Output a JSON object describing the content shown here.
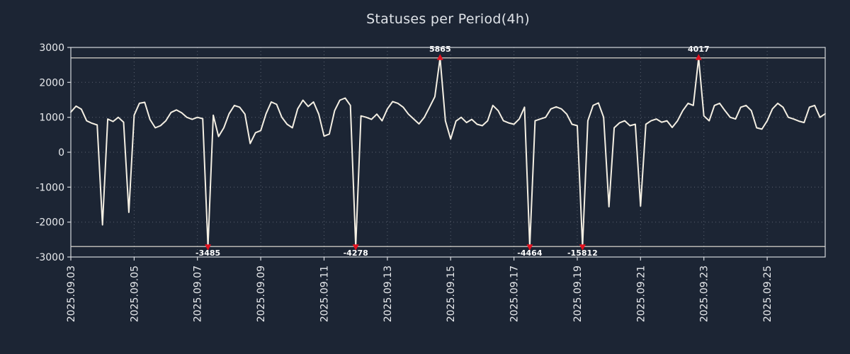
{
  "colors": {
    "background": "#1c2534",
    "line": "#f4efe3",
    "grid": "#9aa0ab",
    "frame": "#d4d7dc",
    "marker": "#e3111f",
    "text": "#e9ebee",
    "clip_line": "#ece8dc"
  },
  "chart_data": {
    "type": "line",
    "title": "Statuses per Period(4h)",
    "xlabel": "",
    "ylabel": "",
    "ylim": [
      -3000,
      3000
    ],
    "y_ticks": [
      -3000,
      -2000,
      -1000,
      0,
      1000,
      2000,
      3000
    ],
    "x_ticks": [
      {
        "day": 0,
        "label": "2025.09.03"
      },
      {
        "day": 2,
        "label": "2025.09.05"
      },
      {
        "day": 4,
        "label": "2025.09.07"
      },
      {
        "day": 6,
        "label": "2025.09.09"
      },
      {
        "day": 8,
        "label": "2025.09.11"
      },
      {
        "day": 10,
        "label": "2025.09.13"
      },
      {
        "day": 12,
        "label": "2025.09.15"
      },
      {
        "day": 14,
        "label": "2025.09.17"
      },
      {
        "day": 16,
        "label": "2025.09.19"
      },
      {
        "day": 18,
        "label": "2025.09.21"
      },
      {
        "day": 20,
        "label": "2025.09.23"
      },
      {
        "day": 22,
        "label": "2025.09.25"
      }
    ],
    "x_step_days": 0.1666667,
    "clip_level": 2700,
    "grid": true,
    "legend": "none",
    "outliers": [
      {
        "value": -3485,
        "approx_date": "2025.09.07"
      },
      {
        "value": -4278,
        "approx_date": "2025.09.12"
      },
      {
        "value": 5865,
        "approx_date": "2025.09.14"
      },
      {
        "value": -4464,
        "approx_date": "2025.09.17"
      },
      {
        "value": -15812,
        "approx_date": "2025.09.19"
      },
      {
        "value": 4017,
        "approx_date": "2025.09.22"
      }
    ],
    "values": [
      1150,
      1320,
      1230,
      900,
      830,
      780,
      -2080,
      950,
      880,
      1000,
      860,
      -1720,
      1060,
      1400,
      1430,
      940,
      700,
      760,
      900,
      1140,
      1210,
      1130,
      1000,
      940,
      1000,
      960,
      -3485,
      1060,
      450,
      700,
      1100,
      1340,
      1290,
      1090,
      250,
      560,
      620,
      1100,
      1440,
      1370,
      1000,
      800,
      700,
      1240,
      1490,
      1310,
      1440,
      1090,
      460,
      520,
      1190,
      1490,
      1550,
      1340,
      -4278,
      1040,
      1000,
      940,
      1090,
      900,
      1240,
      1450,
      1400,
      1290,
      1090,
      950,
      810,
      1000,
      1290,
      1590,
      5865,
      900,
      380,
      890,
      1000,
      850,
      940,
      800,
      760,
      900,
      1340,
      1190,
      900,
      840,
      800,
      950,
      1290,
      -4464,
      900,
      950,
      1000,
      1240,
      1300,
      1240,
      1090,
      800,
      760,
      -15812,
      900,
      1340,
      1410,
      1000,
      -1560,
      700,
      840,
      900,
      760,
      800,
      -1540,
      800,
      900,
      950,
      860,
      900,
      710,
      900,
      1190,
      1400,
      1340,
      4017,
      1040,
      900,
      1340,
      1400,
      1190,
      1000,
      950,
      1290,
      1340,
      1190,
      700,
      660,
      900,
      1240,
      1400,
      1290,
      1000,
      950,
      890,
      850,
      1290,
      1340,
      1000,
      1100
    ]
  }
}
